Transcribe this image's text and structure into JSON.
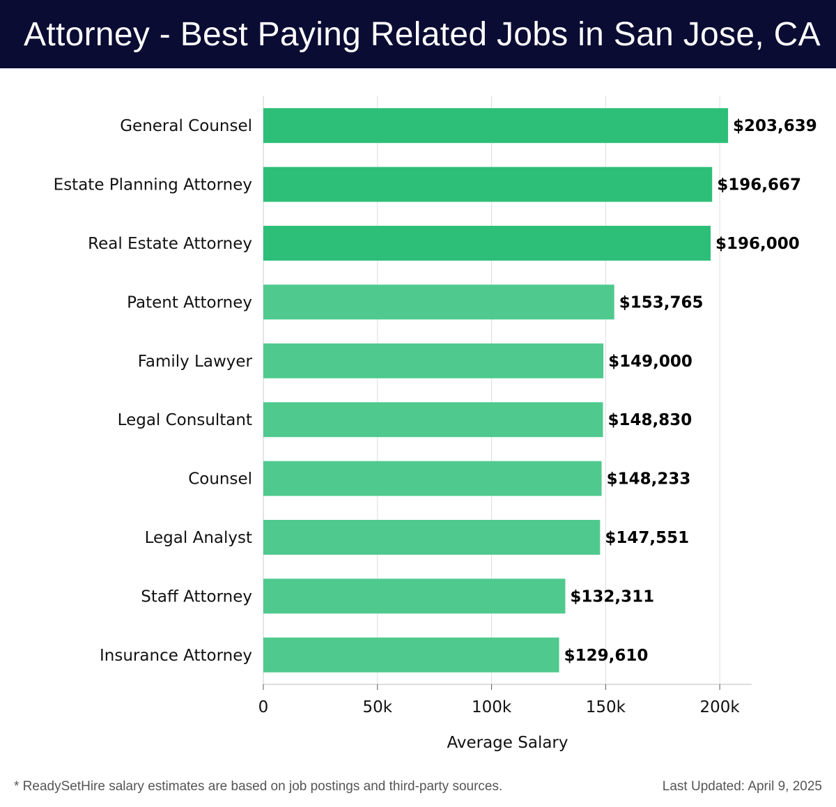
{
  "title": "Attorney - Best Paying Related Jobs in San Jose, CA",
  "footnote": "* ReadySetHire salary estimates are based on job postings and third-party sources.",
  "last_updated": "Last Updated: April 9, 2025",
  "colors": {
    "header_bg": "#0b0c33",
    "bar_top": "#2dbe78",
    "bar_other": "#4fc98e"
  },
  "chart_data": {
    "type": "bar",
    "orientation": "horizontal",
    "categories": [
      "General Counsel",
      "Estate Planning Attorney",
      "Real Estate Attorney",
      "Patent Attorney",
      "Family Lawyer",
      "Legal Consultant",
      "Counsel",
      "Legal Analyst",
      "Staff Attorney",
      "Insurance Attorney"
    ],
    "values": [
      203639,
      196667,
      196000,
      153765,
      149000,
      148830,
      148233,
      147551,
      132311,
      129610
    ],
    "value_labels": [
      "$203,639",
      "$196,667",
      "$196,000",
      "$153,765",
      "$149,000",
      "$148,830",
      "$148,233",
      "$147,551",
      "$132,311",
      "$129,610"
    ],
    "xlabel": "Average Salary",
    "ylabel": "",
    "xlim": [
      0,
      214000
    ],
    "ticks": [
      0,
      50000,
      100000,
      150000,
      200000
    ],
    "tick_labels": [
      "0",
      "50k",
      "100k",
      "150k",
      "200k"
    ],
    "grid": true
  }
}
